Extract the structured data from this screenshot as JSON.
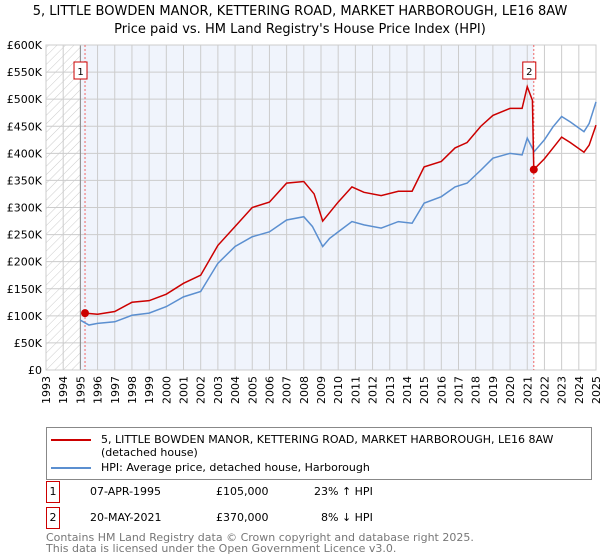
{
  "chart_data": {
    "type": "line",
    "title": "5, LITTLE BOWDEN MANOR, KETTERING ROAD, MARKET HARBOROUGH, LE16 8AW",
    "subtitle": "Price paid vs. HM Land Registry's House Price Index (HPI)",
    "xlabel": "",
    "ylabel": "",
    "xlim": [
      1993,
      2025
    ],
    "ylim": [
      0,
      600000
    ],
    "x_ticks": [
      "1993",
      "1994",
      "1995",
      "1996",
      "1997",
      "1998",
      "1999",
      "2000",
      "2001",
      "2002",
      "2003",
      "2004",
      "2005",
      "2006",
      "2007",
      "2008",
      "2009",
      "2010",
      "2011",
      "2012",
      "2013",
      "2014",
      "2015",
      "2016",
      "2017",
      "2018",
      "2019",
      "2020",
      "2021",
      "2022",
      "2023",
      "2024",
      "2025"
    ],
    "y_ticks": [
      {
        "v": 0,
        "label": "£0"
      },
      {
        "v": 50000,
        "label": "£50K"
      },
      {
        "v": 100000,
        "label": "£100K"
      },
      {
        "v": 150000,
        "label": "£150K"
      },
      {
        "v": 200000,
        "label": "£200K"
      },
      {
        "v": 250000,
        "label": "£250K"
      },
      {
        "v": 300000,
        "label": "£300K"
      },
      {
        "v": 350000,
        "label": "£350K"
      },
      {
        "v": 400000,
        "label": "£400K"
      },
      {
        "v": 450000,
        "label": "£450K"
      },
      {
        "v": 500000,
        "label": "£500K"
      },
      {
        "v": 550000,
        "label": "£550K"
      },
      {
        "v": 600000,
        "label": "£600K"
      }
    ],
    "grid": true,
    "series": [
      {
        "name": "5, LITTLE BOWDEN MANOR, KETTERING ROAD, MARKET HARBOROUGH, LE16 8AW (detached house)",
        "color": "#cc0000",
        "x": [
          1995.27,
          1996,
          1997,
          1998,
          1999,
          2000,
          2001,
          2002,
          2003,
          2004,
          2005,
          2006,
          2007,
          2008,
          2008.6,
          2009.1,
          2010,
          2010.8,
          2011.5,
          2012.5,
          2013.5,
          2014.3,
          2015,
          2016,
          2016.8,
          2017.5,
          2018.3,
          2019,
          2020,
          2020.7,
          2021,
          2021.3,
          2021.38,
          2022,
          2022.5,
          2023,
          2023.5,
          2024.3,
          2024.6,
          2025
        ],
        "y": [
          105000,
          103000,
          108000,
          125000,
          128000,
          140000,
          160000,
          175000,
          230000,
          265000,
          300000,
          310000,
          345000,
          348000,
          325000,
          275000,
          310000,
          338000,
          328000,
          322000,
          330000,
          330000,
          375000,
          385000,
          410000,
          420000,
          450000,
          470000,
          483000,
          483000,
          523000,
          498000,
          370000,
          390000,
          410000,
          430000,
          420000,
          402000,
          415000,
          452000
        ]
      },
      {
        "name": "HPI: Average price, detached house, Harborough",
        "color": "#5b8fd0",
        "x": [
          1995,
          1995.5,
          1996,
          1997,
          1998,
          1999,
          2000,
          2001,
          2002,
          2003,
          2004,
          2005,
          2006,
          2007,
          2008,
          2008.5,
          2009.1,
          2009.5,
          2010,
          2010.8,
          2011.5,
          2012.5,
          2013.5,
          2014.3,
          2015,
          2016,
          2016.8,
          2017.5,
          2018.3,
          2019,
          2020,
          2020.7,
          2021,
          2021.4,
          2022,
          2022.5,
          2023,
          2023.5,
          2024.3,
          2024.6,
          2025
        ],
        "y": [
          92000,
          83000,
          86000,
          89000,
          101000,
          105000,
          117000,
          135000,
          145000,
          197000,
          228000,
          246000,
          255000,
          277000,
          283000,
          265000,
          228000,
          243000,
          255000,
          274000,
          268000,
          262000,
          274000,
          271000,
          308000,
          320000,
          338000,
          345000,
          369000,
          391000,
          400000,
          397000,
          428000,
          403000,
          425000,
          449000,
          468000,
          458000,
          440000,
          455000,
          495000
        ]
      }
    ],
    "markers": [
      {
        "label": "1",
        "x": 1995.27,
        "y": 105000
      },
      {
        "label": "2",
        "x": 2021.38,
        "y": 370000
      }
    ],
    "legend_placement": "bottom"
  },
  "legend": {
    "items": [
      {
        "label": "5, LITTLE BOWDEN MANOR, KETTERING ROAD, MARKET HARBOROUGH, LE16 8AW (detached house)",
        "color": "#cc0000"
      },
      {
        "label": "HPI: Average price, detached house, Harborough",
        "color": "#5b8fd0"
      }
    ]
  },
  "transactions": [
    {
      "num": "1",
      "date": "07-APR-1995",
      "price": "£105,000",
      "hpi": "23% ↑ HPI"
    },
    {
      "num": "2",
      "date": "20-MAY-2021",
      "price": "£370,000",
      "hpi": "8% ↓ HPI"
    }
  ],
  "footer": {
    "line1": "Contains HM Land Registry data © Crown copyright and database right 2025.",
    "line2": "This data is licensed under the Open Government Licence v3.0."
  }
}
